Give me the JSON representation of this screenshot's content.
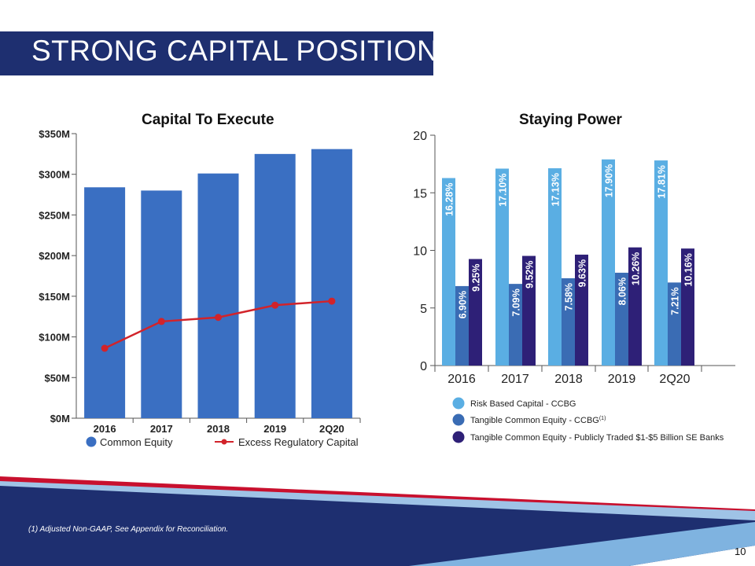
{
  "page": {
    "title": "STRONG CAPITAL POSITION",
    "footnote": "(1) Adjusted Non-GAAP, See Appendix for Reconciliation.",
    "page_number": "10"
  },
  "colors": {
    "navy": "#1e2f70",
    "common_equity_bar": "#3a6fc2",
    "excess_capital_line": "#d2232a",
    "risk_based": "#5aaee3",
    "tangible_ccbg": "#3a6cb4",
    "tangible_peers": "#2e2077",
    "footer_red": "#c8102e"
  },
  "chart_data": [
    {
      "type": "bar",
      "title": "Capital To Execute",
      "categories": [
        "2016",
        "2017",
        "2018",
        "2019",
        "2Q20"
      ],
      "y_tick_labels": [
        "$0M",
        "$50M",
        "$100M",
        "$150M",
        "$200M",
        "$250M",
        "$300M",
        "$350M"
      ],
      "ylim": [
        0,
        350
      ],
      "series": [
        {
          "name": "Common Equity",
          "type": "bar",
          "values": [
            284,
            280,
            301,
            325,
            331
          ]
        },
        {
          "name": "Excess Regulatory Capital",
          "type": "line",
          "values": [
            86,
            119,
            124,
            139,
            144
          ]
        }
      ],
      "legend": "bottom"
    },
    {
      "type": "bar",
      "title": "Staying Power",
      "categories": [
        "2016",
        "2017",
        "2018",
        "2019",
        "2Q20"
      ],
      "y_tick_labels": [
        "0",
        "5",
        "10",
        "15",
        "20"
      ],
      "ylim": [
        0,
        20
      ],
      "series": [
        {
          "name": "Risk Based Capital - CCBG",
          "values": [
            16.28,
            17.1,
            17.13,
            17.9,
            17.81
          ],
          "labels": [
            "16.28%",
            "17.10%",
            "17.13%",
            "17.90%",
            "17.81%"
          ]
        },
        {
          "name": "Tangible Common Equity - CCBG",
          "legend_superscript": "(1)",
          "values": [
            6.9,
            7.09,
            7.58,
            8.06,
            7.21
          ],
          "labels": [
            "6.90%",
            "7.09%",
            "7.58%",
            "8.06%",
            "7.21%"
          ]
        },
        {
          "name": "Tangible Common Equity - Publicly Traded $1-$5 Billion SE Banks",
          "values": [
            9.25,
            9.52,
            9.63,
            10.26,
            10.16
          ],
          "labels": [
            "9.25%",
            "9.52%",
            "9.63%",
            "10.26%",
            "10.16%"
          ]
        }
      ],
      "legend": "bottom"
    }
  ]
}
